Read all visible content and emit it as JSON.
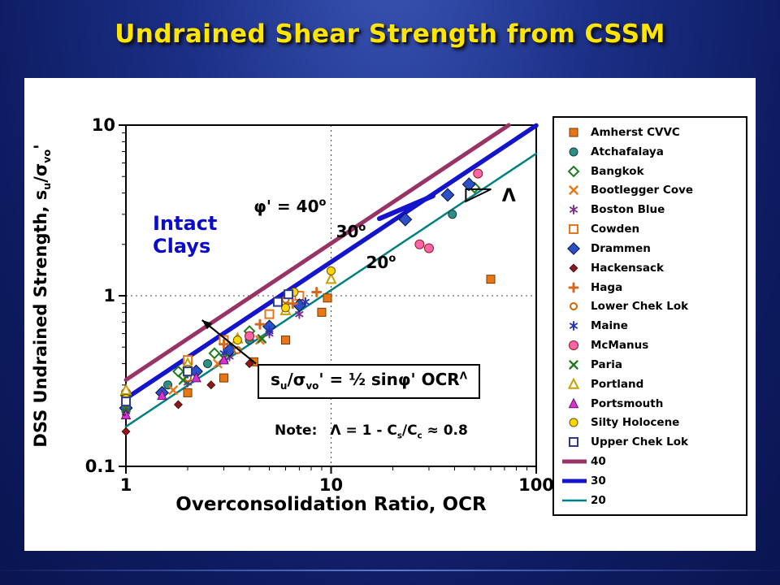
{
  "slide": {
    "title": "Undrained Shear Strength from CSSM"
  },
  "colors": {
    "title": "#FFE600",
    "background": "#0d1b60",
    "panel": "#ffffff",
    "line_40": "#993366",
    "line_30": "#1414CC",
    "line_20": "#008080",
    "intact_text": "#0b0bcc"
  },
  "chart_data": {
    "type": "scatter",
    "xlabel": "Overconsolidation Ratio,  OCR",
    "ylabel_parts": {
      "main": "DSS Undrained Strength,  s",
      "sub1": "u",
      "mid": "/σ",
      "sub2": "vo",
      "end": "'"
    },
    "x_scale": "log",
    "y_scale": "log",
    "xlim": [
      1,
      100
    ],
    "ylim": [
      0.1,
      10
    ],
    "x_ticks": [
      {
        "v": 1,
        "label": "1"
      },
      {
        "v": 10,
        "label": "10"
      },
      {
        "v": 100,
        "label": "100"
      }
    ],
    "y_ticks": [
      {
        "v": 0.1,
        "label": "0.1"
      },
      {
        "v": 1,
        "label": "1"
      },
      {
        "v": 10,
        "label": "10"
      }
    ],
    "grid_x": [
      10
    ],
    "grid_y": [
      1
    ],
    "lambda_exponent": 0.8,
    "trend_lines": [
      {
        "name": "40",
        "phi_deg": 40,
        "color": "#993366",
        "width": 5
      },
      {
        "name": "30",
        "phi_deg": 30,
        "color": "#1414CC",
        "width": 5.5
      },
      {
        "name": "20",
        "phi_deg": 20,
        "color": "#008080",
        "width": 2.5
      }
    ],
    "annotations": {
      "intact_line1": "Intact",
      "intact_line2": "Clays",
      "phi_labels": [
        {
          "x": 6.3,
          "y": 3.1,
          "text": "φ' = 40",
          "sup": "o"
        },
        {
          "x": 12.5,
          "y": 2.2,
          "text": "30",
          "sup": "o"
        },
        {
          "x": 17.5,
          "y": 1.45,
          "text": "20",
          "sup": "o"
        }
      ],
      "lambda_label": {
        "x": 68,
        "y": 3.9,
        "text": "Λ"
      },
      "slope_marker": {
        "x": 53,
        "y": 3.9
      },
      "arrow": {
        "from": [
          4.3,
          0.4
        ],
        "to": [
          2.35,
          0.72
        ]
      },
      "blue_segment": {
        "from": [
          17.2,
          2.83
        ],
        "to": [
          31.4,
          3.85
        ],
        "color": "#1414CC",
        "width": 6
      },
      "equation": {
        "p1": "s",
        "sub1": "u",
        "p2": "/σ",
        "sub2": "vo",
        "p3": "'  =  ½ sinφ'  OCR",
        "sup": "Λ"
      },
      "note": {
        "prefix": "Note:",
        "p1": "Λ  = 1 - C",
        "sub1": "s",
        "p2": "/C",
        "sub2": "c",
        "p3": "  ≈  0.8"
      }
    },
    "series": [
      {
        "name": "Amherst CVVC",
        "marker": "square",
        "color": "#E87617",
        "edge": "#7a3b00",
        "size": 10,
        "points": [
          [
            2,
            0.27
          ],
          [
            3,
            0.33
          ],
          [
            4.2,
            0.41
          ],
          [
            6,
            0.55
          ],
          [
            9,
            0.8
          ],
          [
            9.6,
            0.97
          ],
          [
            60,
            1.25
          ]
        ]
      },
      {
        "name": "Atchafalaya",
        "marker": "circle",
        "color": "#2E8F85",
        "edge": "#123f3a",
        "size": 10,
        "points": [
          [
            1,
            0.24
          ],
          [
            1.6,
            0.3
          ],
          [
            2.5,
            0.4
          ],
          [
            4,
            0.55
          ],
          [
            39,
            3.0
          ]
        ]
      },
      {
        "name": "Bangkok",
        "marker": "diamond-open",
        "color": "#1E7A1E",
        "edge": "#1E7A1E",
        "size": 10,
        "points": [
          [
            1,
            0.26
          ],
          [
            1.8,
            0.36
          ],
          [
            2.7,
            0.46
          ],
          [
            4,
            0.62
          ],
          [
            50,
            4.3
          ]
        ]
      },
      {
        "name": "Bootlegger Cove",
        "marker": "x",
        "color": "#E87617",
        "edge": "#E87617",
        "size": 9,
        "points": [
          [
            1,
            0.2
          ],
          [
            1.7,
            0.28
          ],
          [
            2.8,
            0.4
          ],
          [
            4.5,
            0.55
          ]
        ]
      },
      {
        "name": "Boston Blue",
        "marker": "asterisk",
        "color": "#7B2D8E",
        "edge": "#7B2D8E",
        "size": 10,
        "points": [
          [
            1,
            0.21
          ],
          [
            2,
            0.31
          ],
          [
            3.2,
            0.44
          ],
          [
            5,
            0.6
          ],
          [
            7,
            0.78
          ]
        ]
      },
      {
        "name": "Cowden",
        "marker": "square-open",
        "color": "#E87617",
        "edge": "#E87617",
        "size": 10,
        "points": [
          [
            2,
            0.42
          ],
          [
            3,
            0.55
          ],
          [
            5,
            0.78
          ],
          [
            7,
            1.0
          ]
        ]
      },
      {
        "name": "Drammen",
        "marker": "diamond",
        "color": "#2B50C8",
        "edge": "#0a123f",
        "size": 13,
        "points": [
          [
            1,
            0.22
          ],
          [
            1.5,
            0.27
          ],
          [
            2.2,
            0.36
          ],
          [
            3.2,
            0.48
          ],
          [
            5,
            0.66
          ],
          [
            7,
            0.88
          ],
          [
            23,
            2.8
          ],
          [
            37,
            3.9
          ],
          [
            47,
            4.5
          ]
        ]
      },
      {
        "name": "Hackensack",
        "marker": "diamond",
        "color": "#8B1A1A",
        "edge": "#4d0d0d",
        "size": 8,
        "points": [
          [
            1,
            0.16
          ],
          [
            1.8,
            0.23
          ],
          [
            2.6,
            0.3
          ],
          [
            4,
            0.4
          ]
        ]
      },
      {
        "name": "Haga",
        "marker": "plus",
        "color": "#D2691E",
        "edge": "#D2691E",
        "size": 10,
        "points": [
          [
            2,
            0.4
          ],
          [
            3,
            0.52
          ],
          [
            4.5,
            0.68
          ],
          [
            6.5,
            0.9
          ],
          [
            8.5,
            1.05
          ]
        ]
      },
      {
        "name": "Lower Chek Lok",
        "marker": "circle-open",
        "color": "#CC6600",
        "edge": "#CC6600",
        "size": 10,
        "points": [
          [
            1,
            0.23
          ],
          [
            2,
            0.33
          ],
          [
            3.5,
            0.48
          ],
          [
            6,
            0.95
          ]
        ]
      },
      {
        "name": "Maine",
        "marker": "asterisk",
        "color": "#2233BB",
        "edge": "#2233BB",
        "size": 10,
        "points": [
          [
            1,
            0.25
          ],
          [
            2,
            0.35
          ],
          [
            3,
            0.46
          ],
          [
            5,
            0.62
          ],
          [
            7.5,
            0.92
          ]
        ]
      },
      {
        "name": "McManus",
        "marker": "circle",
        "color": "#FF64A8",
        "edge": "#8B1A1A",
        "size": 11,
        "points": [
          [
            1,
            0.27
          ],
          [
            2,
            0.38
          ],
          [
            4,
            0.58
          ],
          [
            27,
            2.0
          ],
          [
            30,
            1.9
          ],
          [
            52,
            5.2
          ]
        ]
      },
      {
        "name": "Paria",
        "marker": "x",
        "color": "#1E7A1E",
        "edge": "#1E7A1E",
        "size": 9,
        "points": [
          [
            1,
            0.22
          ],
          [
            1.9,
            0.32
          ],
          [
            3,
            0.43
          ],
          [
            4.6,
            0.56
          ]
        ]
      },
      {
        "name": "Portland",
        "marker": "triangle-open",
        "color": "#C8A000",
        "edge": "#C8A000",
        "size": 10,
        "points": [
          [
            1,
            0.28
          ],
          [
            2,
            0.4
          ],
          [
            3.5,
            0.56
          ],
          [
            6,
            0.82
          ],
          [
            10,
            1.25
          ]
        ]
      },
      {
        "name": "Portsmouth",
        "marker": "triangle",
        "color": "#D633D6",
        "edge": "#6a106a",
        "size": 10,
        "points": [
          [
            1,
            0.2
          ],
          [
            1.5,
            0.26
          ],
          [
            2.2,
            0.33
          ],
          [
            3,
            0.42
          ]
        ]
      },
      {
        "name": "Silty Holocene",
        "marker": "circle",
        "color": "#FFD700",
        "edge": "#6b5400",
        "size": 10,
        "points": [
          [
            1,
            0.25
          ],
          [
            2,
            0.37
          ],
          [
            3.5,
            0.55
          ],
          [
            6,
            0.85
          ],
          [
            6.6,
            1.05
          ],
          [
            10,
            1.4
          ]
        ]
      },
      {
        "name": "Upper Chek Lok",
        "marker": "square-open",
        "color": "#2B3A8C",
        "edge": "#2B3A8C",
        "size": 10,
        "points": [
          [
            1,
            0.24
          ],
          [
            2,
            0.36
          ],
          [
            5.5,
            0.92
          ],
          [
            6.2,
            1.02
          ]
        ]
      }
    ]
  }
}
